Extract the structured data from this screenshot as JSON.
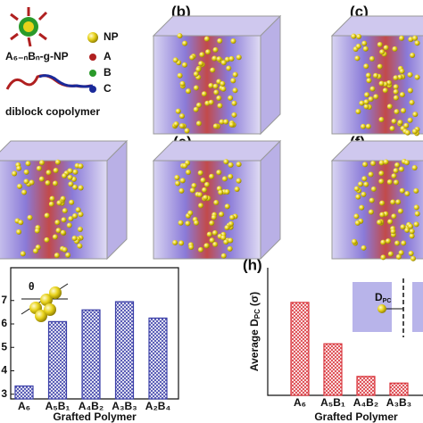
{
  "panels": {
    "molecule_label": "A₆₋ₙBₙ-g-NP",
    "copolymer_label": "diblock copolymer",
    "legend": [
      "NP",
      "A",
      "B",
      "C"
    ],
    "labels": [
      "(b)",
      "(c)",
      "(e)",
      "(f)",
      "(h)"
    ]
  },
  "chart_data": [
    {
      "type": "bar",
      "x_label": "Grafted Polymer",
      "annotation": "θ",
      "categories": [
        "A₆",
        "A₅B₁",
        "A₄B₂",
        "A₃B₃",
        "A₂B₄"
      ],
      "values": [
        3.35,
        6.1,
        6.6,
        6.95,
        6.25
      ],
      "color": "#3b3fa8",
      "ylim": [
        2.8,
        8.4
      ],
      "yticks": [
        3,
        4,
        5,
        6,
        7
      ]
    },
    {
      "type": "bar",
      "x_label": "Grafted Polymer",
      "y_label": "Average D",
      "y_label_sub": "PC",
      "y_label_unit": "(σ)",
      "annotation": "D",
      "annotation_sub": "PC",
      "categories": [
        "A₆",
        "A₅B₁",
        "A₄B₂",
        "A₃B₃"
      ],
      "values": [
        1.82,
        1.01,
        0.37,
        0.24
      ],
      "color": "#d9343b",
      "ylim": [
        0,
        2.5
      ]
    }
  ]
}
